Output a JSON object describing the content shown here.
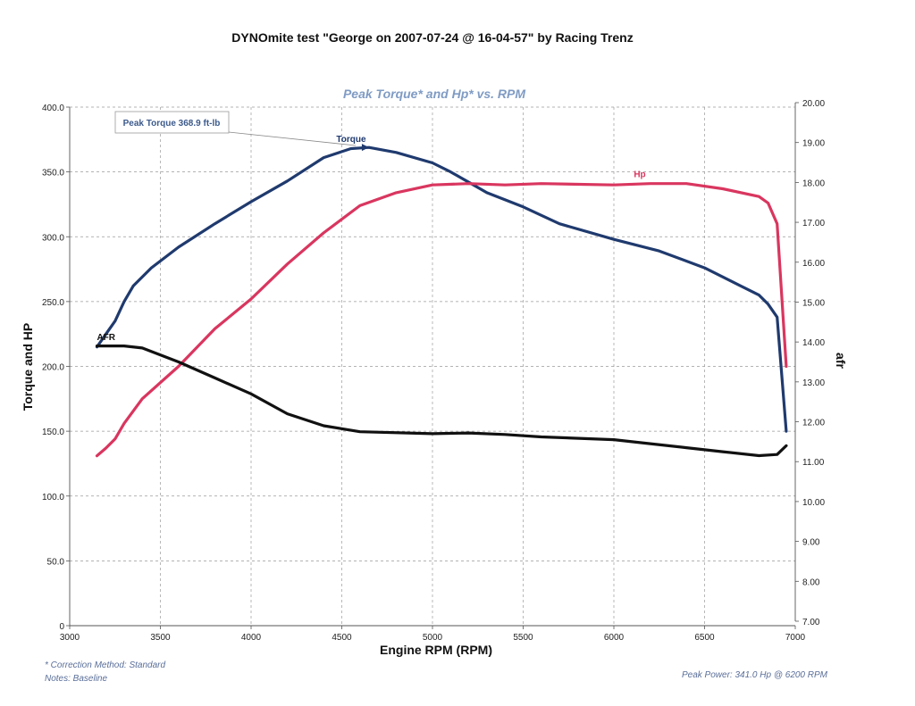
{
  "chart_data": {
    "type": "line",
    "title": "DYNOmite test \"George on 2007-07-24 @ 16-04-57\" by Racing Trenz",
    "subtitle": "Peak Torque* and Hp* vs. RPM",
    "xlabel": "Engine RPM (RPM)",
    "ylabel": "Torque and HP",
    "y2label": "afr",
    "xlim": [
      3000,
      7000
    ],
    "ylim": [
      0,
      400
    ],
    "y2lim": [
      7,
      20
    ],
    "x_ticks": [
      "3000",
      "3500",
      "4000",
      "4500",
      "5000",
      "5500",
      "6000",
      "6500",
      "7000"
    ],
    "y_ticks": [
      "0",
      "50.0",
      "100.0",
      "150.0",
      "200.0",
      "250.0",
      "300.0",
      "350.0",
      "400.0"
    ],
    "y2_ticks": [
      "7.00",
      "8.00",
      "9.00",
      "10.00",
      "11.00",
      "12.00",
      "13.00",
      "14.00",
      "15.00",
      "16.00",
      "17.00",
      "18.00",
      "19.00",
      "20.00"
    ],
    "grid": true,
    "callout": "Peak Torque 368.9 ft-lb",
    "series": [
      {
        "name": "Torque",
        "axis": "left",
        "color": "#1f3a6e",
        "x": [
          3150,
          3200,
          3250,
          3300,
          3350,
          3450,
          3600,
          3800,
          4000,
          4200,
          4400,
          4550,
          4650,
          4800,
          5000,
          5100,
          5200,
          5300,
          5500,
          5700,
          6000,
          6250,
          6500,
          6700,
          6800,
          6850,
          6900,
          6950
        ],
        "values": [
          215,
          225,
          235,
          250,
          262,
          276,
          292,
          310,
          327,
          343,
          361,
          368,
          368.9,
          365,
          357,
          350,
          342,
          334,
          323,
          310,
          298,
          289,
          276,
          262,
          255,
          248,
          238,
          150
        ]
      },
      {
        "name": "Hp",
        "axis": "left",
        "color": "#d9365f",
        "x": [
          3150,
          3200,
          3250,
          3300,
          3400,
          3600,
          3800,
          4000,
          4200,
          4400,
          4600,
          4800,
          5000,
          5200,
          5400,
          5600,
          6000,
          6200,
          6400,
          6600,
          6800,
          6850,
          6900,
          6950
        ],
        "values": [
          131,
          137,
          144,
          156,
          175,
          200,
          229,
          252,
          279,
          303,
          324,
          334,
          340,
          341,
          340,
          341,
          340,
          341,
          341,
          337,
          331,
          326,
          310,
          200
        ]
      },
      {
        "name": "AFR",
        "axis": "right",
        "color": "#111111",
        "x": [
          3150,
          3300,
          3400,
          3600,
          3800,
          4000,
          4200,
          4400,
          4600,
          5000,
          5200,
          5400,
          5600,
          6000,
          6200,
          6400,
          6600,
          6800,
          6900,
          6950
        ],
        "values": [
          13.9,
          13.9,
          13.85,
          13.5,
          13.1,
          12.7,
          12.2,
          11.9,
          11.75,
          11.7,
          11.72,
          11.68,
          11.62,
          11.55,
          11.45,
          11.35,
          11.25,
          11.15,
          11.18,
          11.4
        ]
      }
    ]
  },
  "footer": {
    "correction": "* Correction Method: Standard",
    "notes": "Notes: Baseline",
    "peak_power": "Peak Power: 341.0 Hp @ 6200 RPM"
  }
}
